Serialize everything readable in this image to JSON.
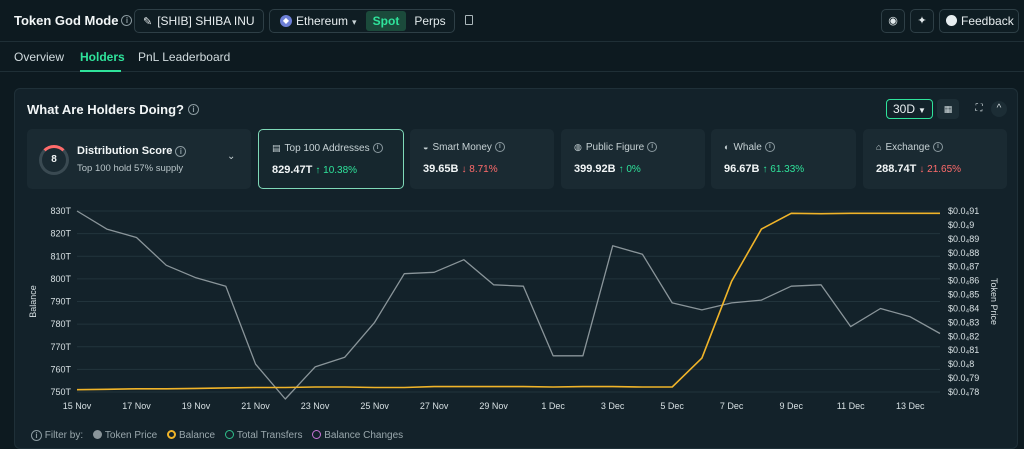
{
  "app": {
    "title": "Token God Mode",
    "token_label": "[SHIB] SHIBA INU",
    "chain": "Ethereum",
    "market_types": [
      "Spot",
      "Perps"
    ],
    "active_market": "Spot",
    "feedback_label": "Feedback"
  },
  "tabs": [
    {
      "label": "Overview",
      "active": false
    },
    {
      "label": "Holders",
      "active": true
    },
    {
      "label": "PnL Leaderboard",
      "active": false
    }
  ],
  "panel": {
    "title": "What Are Holders Doing?",
    "range": "30D"
  },
  "distribution": {
    "score": "8",
    "title": "Distribution Score",
    "subtitle": "Top 100 hold 57% supply"
  },
  "cards": [
    {
      "label": "Top 100 Addresses",
      "value": "829.47T",
      "change": "↑ 10.38%",
      "direction": "up",
      "icon": "wallet-icon",
      "selected": true
    },
    {
      "label": "Smart Money",
      "value": "39.65B",
      "change": "↓ 8.71%",
      "direction": "down",
      "icon": "smart-money-icon",
      "selected": false
    },
    {
      "label": "Public Figure",
      "value": "399.92B",
      "change": "↑ 0%",
      "direction": "up",
      "icon": "public-figure-icon",
      "selected": false
    },
    {
      "label": "Whale",
      "value": "96.67B",
      "change": "↑ 61.33%",
      "direction": "up",
      "icon": "whale-icon",
      "selected": false
    },
    {
      "label": "Exchange",
      "value": "288.74T",
      "change": "↓ 21.65%",
      "direction": "down",
      "icon": "exchange-icon",
      "selected": false
    }
  ],
  "filters": {
    "label": "Filter by:",
    "items": [
      {
        "label": "Token Price",
        "color": "#8a959a",
        "active": false
      },
      {
        "label": "Balance",
        "color": "#f0b429",
        "active": true
      },
      {
        "label": "Total Transfers",
        "color": "#2fbf8a",
        "active": false
      },
      {
        "label": "Balance Changes",
        "color": "#c873d6",
        "active": false
      }
    ]
  },
  "chart_data": {
    "type": "line",
    "ylabel": "Balance",
    "y2label": "Token Price",
    "x_ticks": [
      "15 Nov",
      "17 Nov",
      "19 Nov",
      "21 Nov",
      "23 Nov",
      "25 Nov",
      "27 Nov",
      "29 Nov",
      "1 Dec",
      "3 Dec",
      "5 Dec",
      "7 Dec",
      "9 Dec",
      "11 Dec",
      "13 Dec"
    ],
    "y_ticks": [
      "750T",
      "760T",
      "770T",
      "780T",
      "790T",
      "800T",
      "810T",
      "820T",
      "830T"
    ],
    "ylim": [
      750,
      830
    ],
    "y2_ticks": [
      "$0.0₄78",
      "$0.0₄79",
      "$0.0₄8",
      "$0.0₄81",
      "$0.0₄82",
      "$0.0₄83",
      "$0.0₄84",
      "$0.0₄85",
      "$0.0₄86",
      "$0.0₄87",
      "$0.0₄88",
      "$0.0₄89",
      "$0.0₄9",
      "$0.0₄91"
    ],
    "y2lim": [
      0.78,
      0.91
    ],
    "series": [
      {
        "name": "Token Price",
        "axis": "right",
        "color": "#8a959a",
        "x": [
          0,
          1,
          2,
          3,
          4,
          5,
          6,
          7,
          8,
          9,
          10,
          11,
          12,
          13,
          14,
          15,
          16,
          17,
          18,
          19,
          20,
          21,
          22,
          23,
          24,
          25,
          26,
          27,
          28,
          29
        ],
        "values": [
          0.91,
          0.897,
          0.891,
          0.871,
          0.862,
          0.856,
          0.8,
          0.775,
          0.798,
          0.805,
          0.83,
          0.865,
          0.866,
          0.875,
          0.857,
          0.856,
          0.806,
          0.806,
          0.885,
          0.879,
          0.844,
          0.839,
          0.844,
          0.846,
          0.856,
          0.857,
          0.827,
          0.84,
          0.834,
          0.822
        ]
      },
      {
        "name": "Balance",
        "axis": "left",
        "color": "#f0b429",
        "x": [
          0,
          1,
          2,
          3,
          4,
          5,
          6,
          7,
          8,
          9,
          10,
          11,
          12,
          13,
          14,
          15,
          16,
          17,
          18,
          19,
          20,
          21,
          22,
          23,
          24,
          25,
          26,
          27,
          28,
          29
        ],
        "values": [
          751,
          751.2,
          751.4,
          751.4,
          751.6,
          751.8,
          752,
          752,
          752.2,
          752.2,
          752,
          752,
          752.4,
          752.4,
          752.4,
          752.4,
          752.2,
          752.4,
          752.4,
          752.2,
          752.2,
          765,
          799,
          822,
          829,
          828.8,
          829,
          829,
          829,
          829
        ]
      }
    ]
  }
}
